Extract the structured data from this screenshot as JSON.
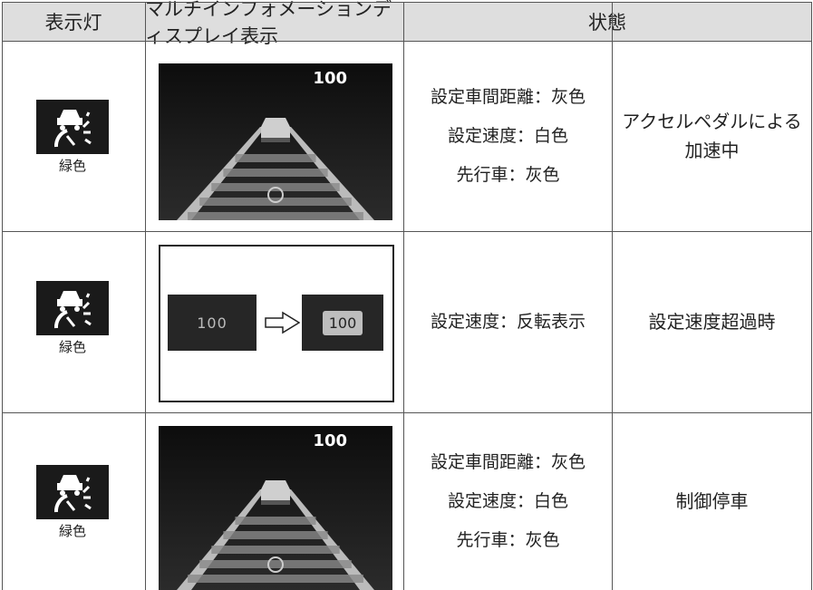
{
  "table": {
    "header": [
      "表示灯",
      "マルチインフォメーションディスプレイ表示",
      "状態"
    ],
    "rows": [
      {
        "indicator": "緑色",
        "screen": [
          "100"
        ],
        "description": [
          "設定車間距離：灰色",
          "設定速度：白色",
          "先行車：灰色"
        ],
        "state": "アクセルペダルによる加速中"
      },
      {
        "indicator": "緑色",
        "screen": [
          "100",
          "100"
        ],
        "description": [
          "設定速度：反転表示"
        ],
        "state": "設定速度超過時"
      },
      {
        "indicator": "緑色",
        "screen": [
          "100"
        ],
        "description": [
          "設定車間距離：灰色",
          "設定速度：白色",
          "先行車：灰色"
        ],
        "state": "制御停車"
      }
    ]
  }
}
